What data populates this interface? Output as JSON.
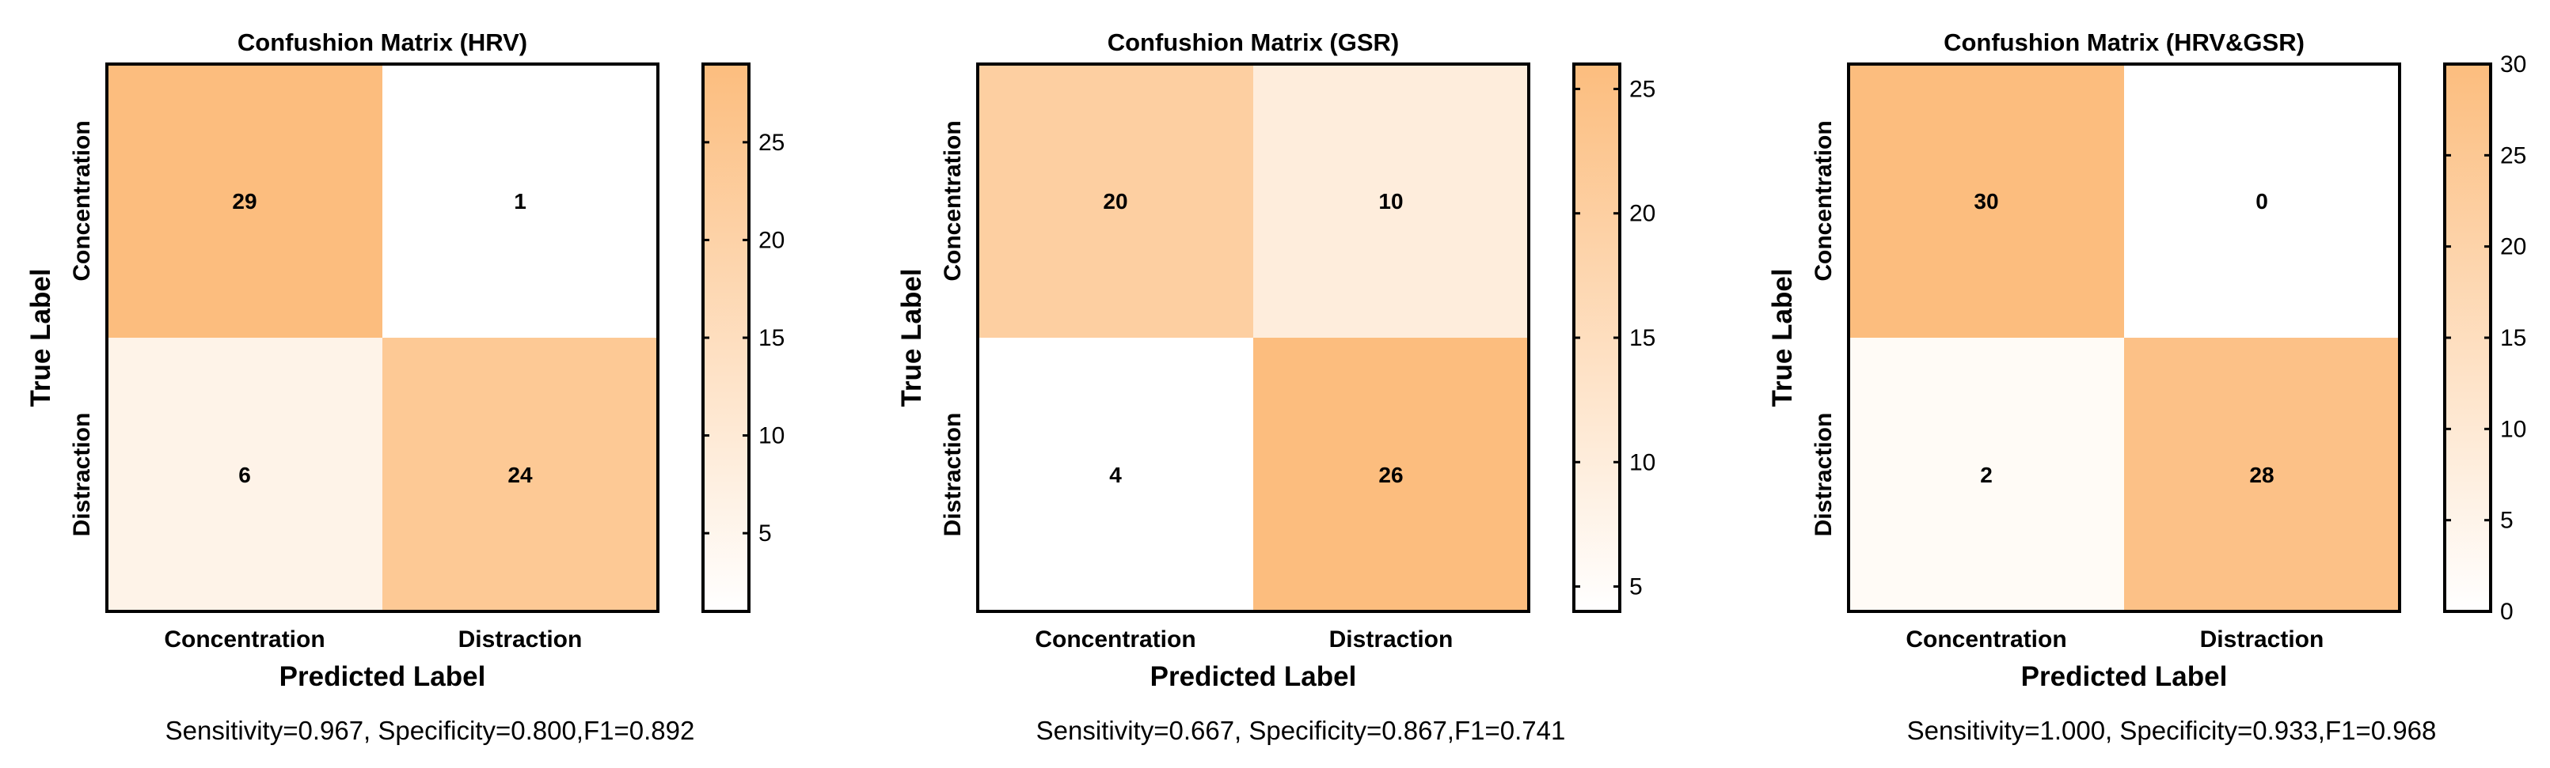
{
  "chart_data": [
    {
      "type": "heatmap",
      "title": "Confushion Matrix (HRV)",
      "xlabel": "Predicted Label",
      "ylabel": "True Label",
      "x_categories": [
        "Concentration",
        "Distraction"
      ],
      "y_categories": [
        "Concentration",
        "Distraction"
      ],
      "values": [
        [
          29,
          1
        ],
        [
          6,
          24
        ]
      ],
      "colorbar": {
        "min": 1,
        "max": 29,
        "ticks": [
          5,
          10,
          15,
          20,
          25
        ]
      },
      "metrics": "Sensitivity=0.967, Specificity=0.800,F1=0.892"
    },
    {
      "type": "heatmap",
      "title": "Confushion Matrix (GSR)",
      "xlabel": "Predicted Label",
      "ylabel": "True Label",
      "x_categories": [
        "Concentration",
        "Distraction"
      ],
      "y_categories": [
        "Concentration",
        "Distraction"
      ],
      "values": [
        [
          20,
          10
        ],
        [
          4,
          26
        ]
      ],
      "colorbar": {
        "min": 4,
        "max": 26,
        "ticks": [
          5,
          10,
          15,
          20,
          25
        ]
      },
      "metrics": "Sensitivity=0.667, Specificity=0.867,F1=0.741"
    },
    {
      "type": "heatmap",
      "title": "Confushion Matrix (HRV&GSR)",
      "xlabel": "Predicted Label",
      "ylabel": "True Label",
      "x_categories": [
        "Concentration",
        "Distraction"
      ],
      "y_categories": [
        "Concentration",
        "Distraction"
      ],
      "values": [
        [
          30,
          0
        ],
        [
          2,
          28
        ]
      ],
      "colorbar": {
        "min": 0,
        "max": 30,
        "ticks": [
          0,
          5,
          10,
          15,
          20,
          25,
          30
        ]
      },
      "metrics": "Sensitivity=1.000, Specificity=0.933,F1=0.968"
    }
  ],
  "colors": {
    "low": "#ffffff",
    "high": "#fcbd7e",
    "frame": "#000000"
  }
}
